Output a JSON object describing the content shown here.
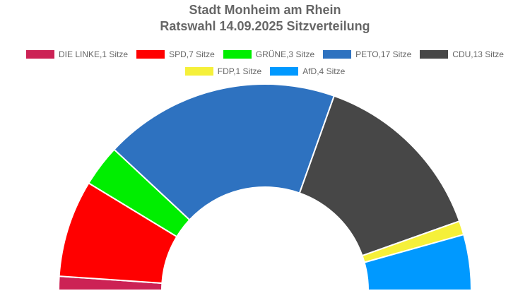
{
  "chart_data": {
    "type": "pie",
    "variant": "parliament-semicircle",
    "title": "Stadt Monheim am Rhein",
    "subtitle": "Ratswahl 14.09.2025 Sitzverteilung",
    "legend_position": "top",
    "series": [
      {
        "name": "DIE LINKE",
        "label": "DIE LINKE,1 Sitze",
        "value": 1,
        "color": "#cc2255"
      },
      {
        "name": "SPD",
        "label": "SPD,7 Sitze",
        "value": 7,
        "color": "#ff0000"
      },
      {
        "name": "GRÜNE",
        "label": "GRÜNE,3 Sitze",
        "value": 3,
        "color": "#00ee00"
      },
      {
        "name": "PETO",
        "label": "PETO,17 Sitze",
        "value": 17,
        "color": "#2e72c0"
      },
      {
        "name": "CDU",
        "label": "CDU,13 Sitze",
        "value": 13,
        "color": "#474747"
      },
      {
        "name": "FDP",
        "label": "FDP,1 Sitze",
        "value": 1,
        "color": "#f5f03a"
      },
      {
        "name": "AfD",
        "label": "AfD,4 Sitze",
        "value": 4,
        "color": "#0099ff"
      }
    ],
    "legend_rows": [
      [
        0,
        1,
        2,
        3,
        4
      ],
      [
        5,
        6
      ]
    ]
  }
}
